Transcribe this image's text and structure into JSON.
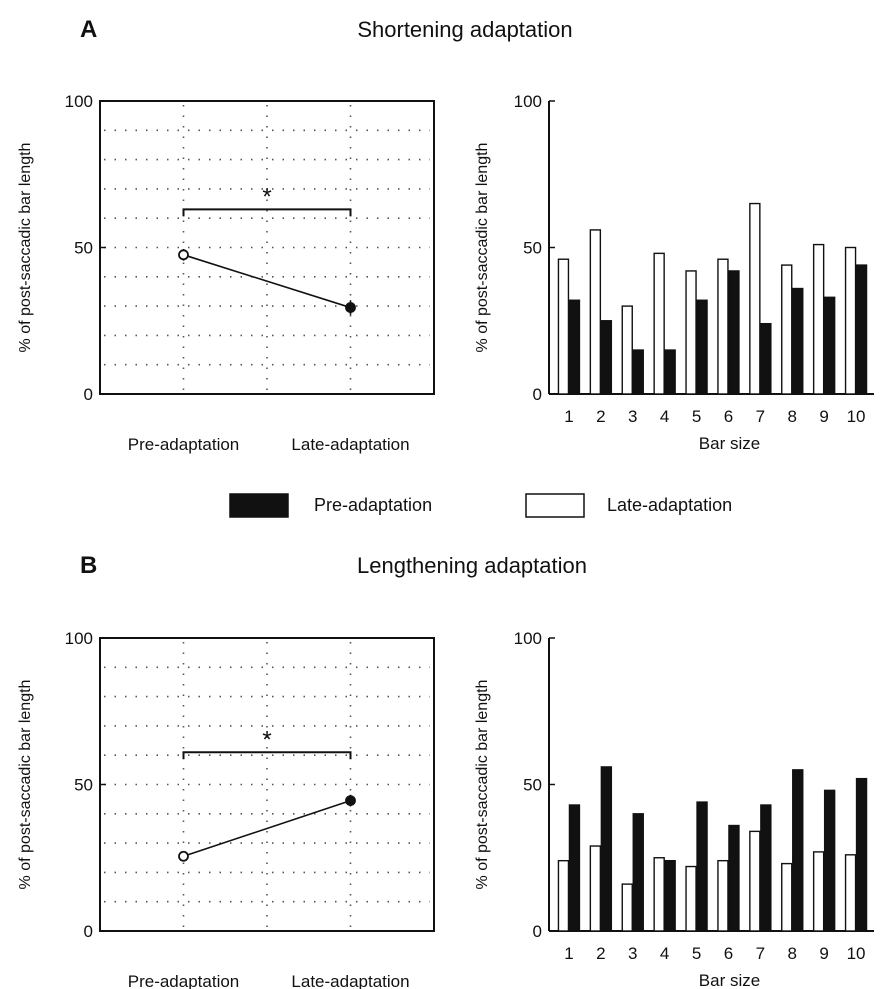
{
  "panels": [
    {
      "letter": "A",
      "title": "Shortening adaptation"
    },
    {
      "letter": "B",
      "title": "Lengthening adaptation"
    }
  ],
  "legend": [
    {
      "label": "Pre-adaptation",
      "fill": "#111111"
    },
    {
      "label": "Late-adaptation",
      "fill": "#ffffff"
    }
  ],
  "colors": {
    "ink": "#111111",
    "open": "#ffffff",
    "grid": "#555555"
  },
  "chart_data": [
    {
      "panel": "A",
      "type": "line",
      "ylabel": "% of post-saccadic bar length",
      "ylim": [
        0,
        100
      ],
      "yticks": [
        0,
        50,
        100
      ],
      "categories": [
        "Pre-adaptation",
        "Late-adaptation"
      ],
      "points": [
        {
          "category": "Pre-adaptation",
          "value": 47.5,
          "error": 2,
          "marker": "open"
        },
        {
          "category": "Late-adaptation",
          "value": 29.5,
          "error": 2.5,
          "marker": "filled"
        }
      ],
      "significance": {
        "label": "*",
        "bracket_y": 63
      },
      "grid": "dotted"
    },
    {
      "panel": "A",
      "type": "bar",
      "xlabel": "Bar size",
      "ylabel": "% of post-saccadic bar length",
      "ylim": [
        0,
        100
      ],
      "yticks": [
        0,
        50,
        100
      ],
      "categories": [
        "1",
        "2",
        "3",
        "4",
        "5",
        "6",
        "7",
        "8",
        "9",
        "10"
      ],
      "series": [
        {
          "name": "Late-adaptation",
          "fill": "open",
          "values": [
            46,
            56,
            30,
            48,
            42,
            46,
            65,
            44,
            51,
            50
          ]
        },
        {
          "name": "Pre-adaptation",
          "fill": "filled",
          "values": [
            32,
            25,
            15,
            15,
            32,
            42,
            24,
            36,
            33,
            44
          ]
        }
      ]
    },
    {
      "panel": "B",
      "type": "line",
      "ylabel": "% of post-saccadic bar length",
      "ylim": [
        0,
        100
      ],
      "yticks": [
        0,
        50,
        100
      ],
      "categories": [
        "Pre-adaptation",
        "Late-adaptation"
      ],
      "points": [
        {
          "category": "Pre-adaptation",
          "value": 25.5,
          "error": 1,
          "marker": "open"
        },
        {
          "category": "Late-adaptation",
          "value": 44.5,
          "error": 2,
          "marker": "filled"
        }
      ],
      "significance": {
        "label": "*",
        "bracket_y": 61
      },
      "grid": "dotted"
    },
    {
      "panel": "B",
      "type": "bar",
      "xlabel": "Bar size",
      "ylabel": "% of post-saccadic bar length",
      "ylim": [
        0,
        100
      ],
      "yticks": [
        0,
        50,
        100
      ],
      "categories": [
        "1",
        "2",
        "3",
        "4",
        "5",
        "6",
        "7",
        "8",
        "9",
        "10"
      ],
      "series": [
        {
          "name": "Late-adaptation",
          "fill": "open",
          "values": [
            24,
            29,
            16,
            25,
            22,
            24,
            34,
            23,
            27,
            26
          ]
        },
        {
          "name": "Pre-adaptation",
          "fill": "filled",
          "values": [
            43,
            56,
            40,
            24,
            44,
            36,
            43,
            55,
            48,
            52
          ]
        }
      ]
    }
  ]
}
